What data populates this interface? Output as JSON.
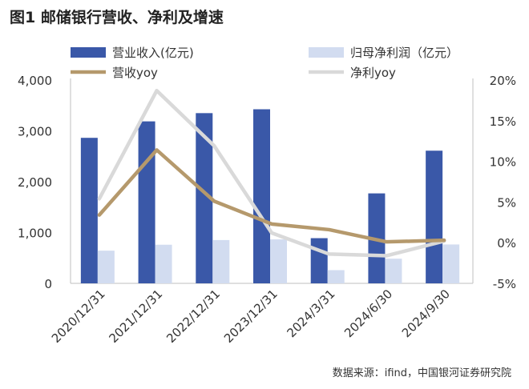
{
  "chart_data": {
    "type": "bar",
    "title": "图1 邮储银行营收、净利及增速",
    "categories": [
      "2020/12/31",
      "2021/12/31",
      "2022/12/31",
      "2023/12/31",
      "2024/3/31",
      "2024/6/30",
      "2024/9/30"
    ],
    "series": [
      {
        "name": "营业收入(亿元)",
        "type": "bar",
        "axis": "left",
        "color": "#3A58A8",
        "values": [
          2863,
          3187,
          3349,
          3425,
          889,
          1770,
          2610
        ]
      },
      {
        "name": "归母净利润（亿元）",
        "type": "bar",
        "axis": "left",
        "color": "#D2DCF0",
        "values": [
          643,
          760,
          852,
          865,
          260,
          485,
          765
        ]
      },
      {
        "name": "营收yoy",
        "type": "line",
        "axis": "right",
        "color": "#B5996C",
        "values": [
          3.4,
          11.4,
          5.1,
          2.3,
          1.6,
          0.1,
          0.3
        ]
      },
      {
        "name": "净利yoy",
        "type": "line",
        "axis": "right",
        "color": "#D9D9D9",
        "values": [
          5.4,
          18.7,
          11.9,
          1.2,
          -1.4,
          -1.6,
          0.2
        ]
      }
    ],
    "ylim_left": [
      0,
      4000
    ],
    "yticks_left": [
      "0",
      "1,000",
      "2,000",
      "3,000",
      "4,000"
    ],
    "ylim_right": [
      -5,
      20
    ],
    "yticks_right": [
      "-5%",
      "0%",
      "5%",
      "10%",
      "15%",
      "20%"
    ],
    "grid": false,
    "legend_placement": "top"
  },
  "source": "数据来源：ifind，中国银河证券研究院"
}
